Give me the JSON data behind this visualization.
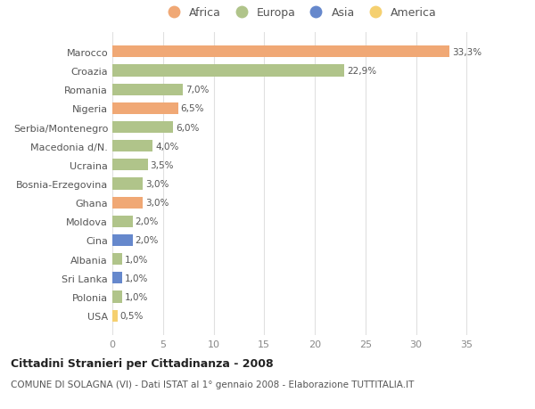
{
  "categories": [
    "Marocco",
    "Croazia",
    "Romania",
    "Nigeria",
    "Serbia/Montenegro",
    "Macedonia d/N.",
    "Ucraina",
    "Bosnia-Erzegovina",
    "Ghana",
    "Moldova",
    "Cina",
    "Albania",
    "Sri Lanka",
    "Polonia",
    "USA"
  ],
  "values": [
    33.3,
    22.9,
    7.0,
    6.5,
    6.0,
    4.0,
    3.5,
    3.0,
    3.0,
    2.0,
    2.0,
    1.0,
    1.0,
    1.0,
    0.5
  ],
  "labels": [
    "33,3%",
    "22,9%",
    "7,0%",
    "6,5%",
    "6,0%",
    "4,0%",
    "3,5%",
    "3,0%",
    "3,0%",
    "2,0%",
    "2,0%",
    "1,0%",
    "1,0%",
    "1,0%",
    "0,5%"
  ],
  "continents": [
    "Africa",
    "Europa",
    "Europa",
    "Africa",
    "Europa",
    "Europa",
    "Europa",
    "Europa",
    "Africa",
    "Europa",
    "Asia",
    "Europa",
    "Asia",
    "Europa",
    "America"
  ],
  "colors": {
    "Africa": "#F0A875",
    "Europa": "#B0C48A",
    "Asia": "#6688CC",
    "America": "#F5D070"
  },
  "xlim": [
    0,
    37
  ],
  "xticks": [
    0,
    5,
    10,
    15,
    20,
    25,
    30,
    35
  ],
  "title": "Cittadini Stranieri per Cittadinanza - 2008",
  "subtitle": "COMUNE DI SOLAGNA (VI) - Dati ISTAT al 1° gennaio 2008 - Elaborazione TUTTITALIA.IT",
  "background_color": "#ffffff",
  "plot_bg_color": "#ffffff",
  "grid_color": "#e0e0e0",
  "legend_order": [
    "Africa",
    "Europa",
    "Asia",
    "America"
  ]
}
